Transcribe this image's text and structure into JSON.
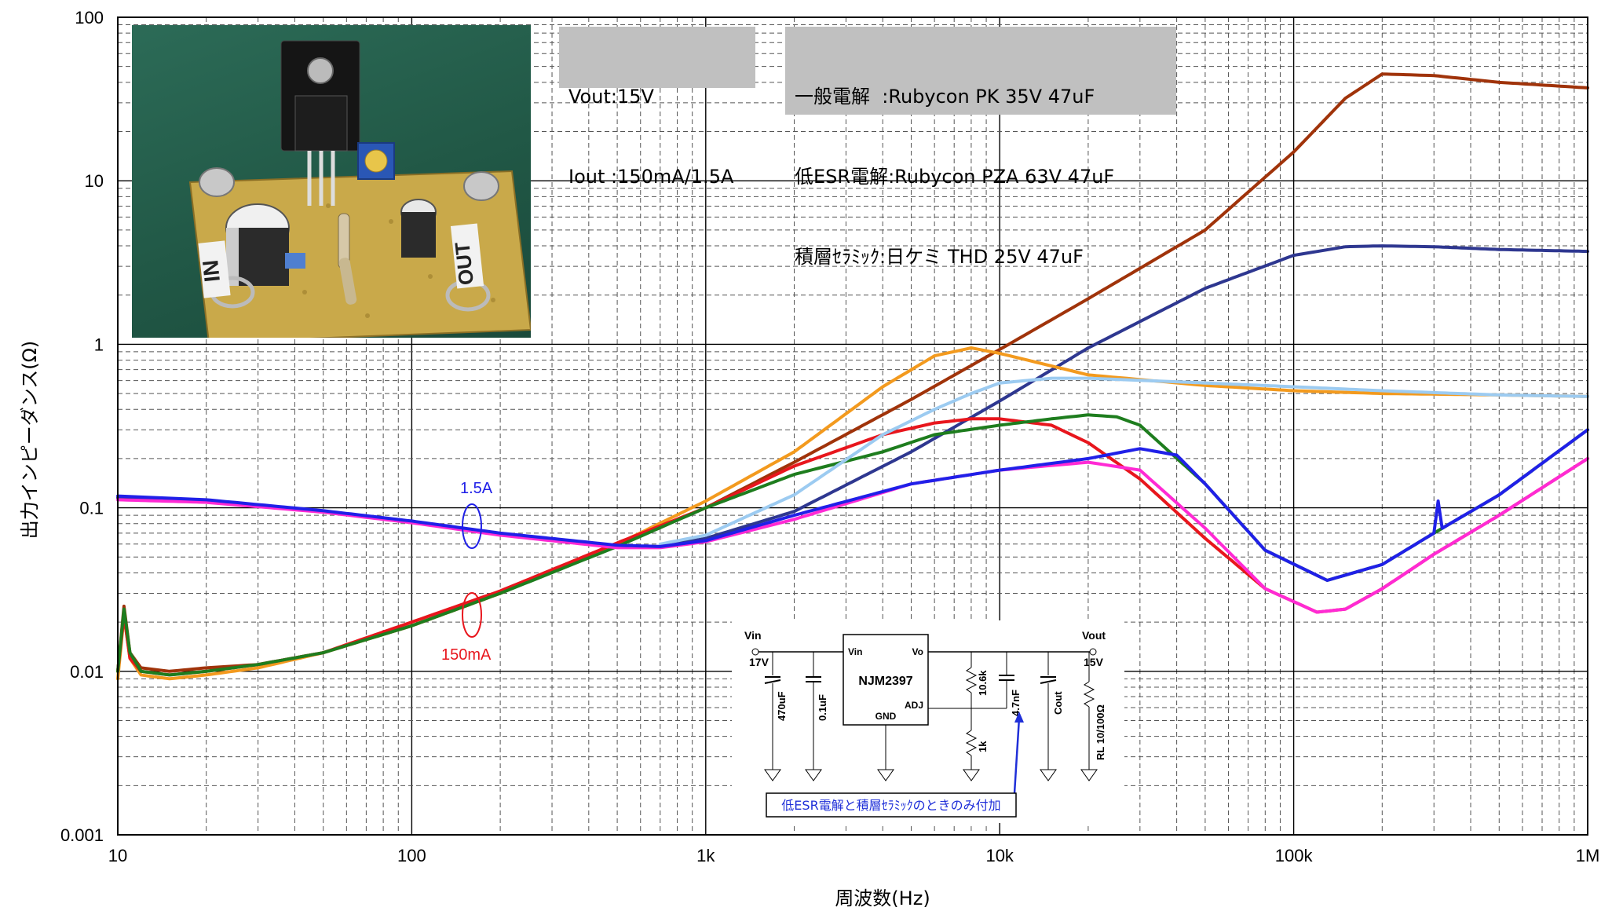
{
  "chart_data": {
    "type": "line",
    "title": "",
    "xlabel": "周波数(Hz)",
    "ylabel": "出力インピーダンス(Ω)",
    "x_scale": "log",
    "y_scale": "log",
    "xlim": [
      10,
      1000000
    ],
    "ylim": [
      0.001,
      100
    ],
    "x_ticks": [
      10,
      100,
      1000,
      10000,
      100000,
      1000000
    ],
    "x_tick_labels": [
      "10",
      "100",
      "1k",
      "10k",
      "100k",
      "1M"
    ],
    "y_ticks": [
      0.001,
      0.01,
      0.1,
      1,
      10,
      100
    ],
    "y_tick_labels": [
      "0.001",
      "0.01",
      "0.1",
      "1",
      "10",
      "100"
    ],
    "grid": true,
    "series": [
      {
        "color": "#a0330a",
        "x": [
          10,
          10.5,
          11,
          12,
          15,
          20,
          30,
          50,
          100,
          200,
          500,
          1000,
          2000,
          5000,
          10000,
          20000,
          50000,
          100000,
          150000,
          200000,
          300000,
          500000,
          1000000
        ],
        "y": [
          0.01,
          0.025,
          0.013,
          0.0105,
          0.01,
          0.0105,
          0.011,
          0.013,
          0.019,
          0.03,
          0.06,
          0.1,
          0.19,
          0.46,
          0.93,
          1.9,
          5.0,
          15,
          32,
          45,
          44,
          40,
          37
        ]
      },
      {
        "color": "#2e3790",
        "x": [
          10,
          20,
          50,
          100,
          200,
          500,
          700,
          1000,
          2000,
          5000,
          10000,
          20000,
          50000,
          100000,
          150000,
          200000,
          300000,
          500000,
          1000000
        ],
        "y": [
          0.115,
          0.11,
          0.095,
          0.082,
          0.069,
          0.058,
          0.058,
          0.065,
          0.095,
          0.22,
          0.45,
          0.95,
          2.2,
          3.5,
          3.95,
          4.0,
          3.95,
          3.8,
          3.7
        ]
      },
      {
        "color": "#f39a1e",
        "x": [
          10,
          10.5,
          11,
          12,
          15,
          20,
          30,
          50,
          100,
          200,
          500,
          1000,
          2000,
          4000,
          6000,
          8000,
          10000,
          20000,
          50000,
          100000,
          200000,
          500000,
          1000000
        ],
        "y": [
          0.009,
          0.022,
          0.012,
          0.0095,
          0.009,
          0.0095,
          0.0105,
          0.013,
          0.019,
          0.03,
          0.06,
          0.11,
          0.22,
          0.55,
          0.85,
          0.95,
          0.88,
          0.65,
          0.56,
          0.52,
          0.5,
          0.49,
          0.48
        ]
      },
      {
        "color": "#e8161d",
        "x": [
          10,
          10.5,
          11,
          12,
          15,
          20,
          30,
          50,
          100,
          200,
          500,
          1000,
          2000,
          4000,
          6000,
          8000,
          10000,
          15000,
          20000,
          30000,
          50000,
          80000,
          120000,
          150000,
          200000,
          300000,
          500000,
          1000000
        ],
        "y": [
          0.01,
          0.022,
          0.012,
          0.01,
          0.0095,
          0.01,
          0.011,
          0.013,
          0.02,
          0.031,
          0.061,
          0.1,
          0.18,
          0.28,
          0.33,
          0.35,
          0.35,
          0.32,
          0.25,
          0.15,
          0.065,
          0.032,
          0.023,
          0.024,
          0.032,
          0.052,
          0.09,
          0.2
        ]
      },
      {
        "color": "#1e7d1e",
        "x": [
          10,
          10.5,
          11,
          12,
          15,
          20,
          30,
          50,
          100,
          200,
          500,
          1000,
          2000,
          4000,
          6000,
          10000,
          15000,
          20000,
          25000,
          30000,
          50000,
          80000,
          130000,
          200000,
          300000,
          500000,
          1000000
        ],
        "y": [
          0.01,
          0.024,
          0.013,
          0.01,
          0.0095,
          0.01,
          0.011,
          0.013,
          0.019,
          0.03,
          0.058,
          0.1,
          0.16,
          0.22,
          0.28,
          0.32,
          0.35,
          0.37,
          0.36,
          0.32,
          0.14,
          0.055,
          0.036,
          0.045,
          0.07,
          0.12,
          0.3
        ]
      },
      {
        "color": "#9ccbf1",
        "x": [
          700,
          1000,
          2000,
          4000,
          6000,
          8000,
          10000,
          15000,
          20000,
          50000,
          100000,
          200000,
          500000,
          1000000
        ],
        "y": [
          0.06,
          0.068,
          0.12,
          0.28,
          0.4,
          0.5,
          0.58,
          0.62,
          0.62,
          0.58,
          0.55,
          0.52,
          0.49,
          0.48
        ]
      },
      {
        "color": "#ff2ad4",
        "x": [
          10,
          20,
          50,
          100,
          200,
          500,
          700,
          1000,
          2000,
          5000,
          10000,
          20000,
          30000,
          50000,
          80000,
          120000,
          150000,
          200000,
          300000,
          500000,
          1000000
        ],
        "y": [
          0.112,
          0.108,
          0.094,
          0.081,
          0.068,
          0.057,
          0.057,
          0.062,
          0.085,
          0.14,
          0.17,
          0.19,
          0.17,
          0.075,
          0.032,
          0.023,
          0.024,
          0.032,
          0.052,
          0.09,
          0.2
        ]
      },
      {
        "color": "#2020e8",
        "x": [
          10,
          20,
          50,
          100,
          200,
          500,
          700,
          1000,
          2000,
          5000,
          10000,
          20000,
          30000,
          40000,
          50000,
          80000,
          130000,
          200000,
          300000,
          310000,
          320000,
          500000,
          1000000
        ],
        "y": [
          0.118,
          0.112,
          0.096,
          0.083,
          0.07,
          0.059,
          0.058,
          0.063,
          0.09,
          0.14,
          0.17,
          0.2,
          0.23,
          0.21,
          0.14,
          0.055,
          0.036,
          0.045,
          0.07,
          0.11,
          0.075,
          0.12,
          0.3
        ]
      }
    ],
    "annotations": {
      "current_high": "1.5A",
      "current_low": "150mA",
      "info_left": [
        "Vout:15V",
        "Iout :150mA/1.5A"
      ],
      "info_right": [
        "一般電解  :Rubycon PK 35V 47uF",
        "低ESR電解:Rubycon PZA 63V 47uF",
        "積層ｾﾗﾐｯｸ:日ケミ THD 25V 47uF"
      ]
    }
  },
  "photo": {
    "label_in": "IN",
    "label_out": "OUT"
  },
  "schematic": {
    "vin_label": "Vin",
    "vin_value": "17V",
    "vout_label": "Vout",
    "vout_value": "15V",
    "ic_name": "NJM2397",
    "pin_vin": "Vin",
    "pin_vo": "Vo",
    "pin_gnd": "GND",
    "pin_adj": "ADJ",
    "c_in": "470uF",
    "c_bypass": "0.1uF",
    "r_top": "10.6k",
    "r_bottom": "1k",
    "c_adj": "4.7nF",
    "c_out": "Cout",
    "load": "RL 10/100Ω",
    "note": "低ESR電解と積層ｾﾗﾐｯｸのときのみ付加"
  }
}
